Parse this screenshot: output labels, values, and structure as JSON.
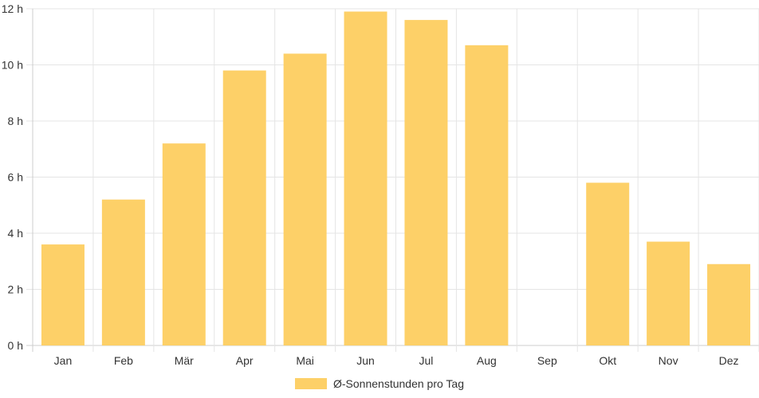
{
  "chart_data": {
    "type": "bar",
    "categories": [
      "Jan",
      "Feb",
      "Mär",
      "Apr",
      "Mai",
      "Jun",
      "Jul",
      "Aug",
      "Sep",
      "Okt",
      "Nov",
      "Dez"
    ],
    "series": [
      {
        "name": "Ø-Sonnenstunden pro Tag",
        "values": [
          3.6,
          5.2,
          7.2,
          9.8,
          10.4,
          11.9,
          11.6,
          10.7,
          0,
          5.8,
          3.7,
          2.9
        ]
      }
    ],
    "ylim": [
      0,
      12
    ],
    "yticks": [
      "0 h",
      "2 h",
      "4 h",
      "6 h",
      "8 h",
      "10 h",
      "12 h"
    ],
    "grid": true,
    "legend_position": "bottom-center",
    "colors": {
      "bar": "#FDD068",
      "grid": "#E5E5E5",
      "axis": "#CCCCCC"
    }
  }
}
